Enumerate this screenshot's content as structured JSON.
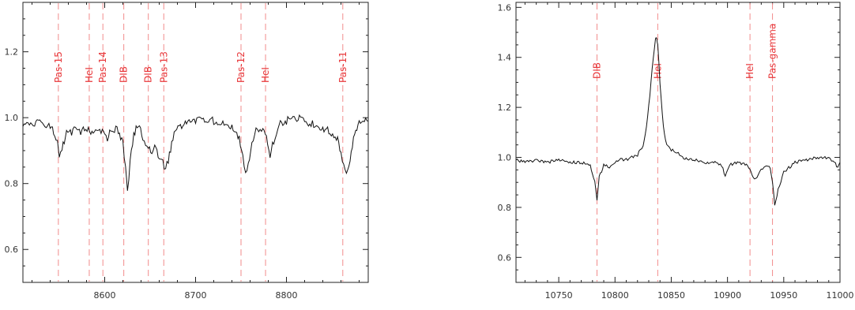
{
  "chart_data": [
    {
      "type": "line",
      "title": "",
      "xlabel": "",
      "ylabel": "",
      "xlim": [
        8510,
        8890
      ],
      "ylim": [
        0.5,
        1.35
      ],
      "xticks": [
        8600,
        8700,
        8800
      ],
      "yticks": [
        0.6,
        0.8,
        1.0,
        1.2
      ],
      "series": [
        {
          "x": [
            8510,
            8520,
            8530,
            8540,
            8545,
            8548,
            8550,
            8553,
            8558,
            8565,
            8575,
            8582,
            8586,
            8590,
            8596,
            8600,
            8603,
            8608,
            8615,
            8620,
            8623,
            8625,
            8628,
            8632,
            8637,
            8642,
            8648,
            8652,
            8655,
            8660,
            8664,
            8667,
            8670,
            8675,
            8682,
            8690,
            8700,
            8710,
            8720,
            8730,
            8740,
            8748,
            8752,
            8755,
            8758,
            8762,
            8768,
            8774,
            8778,
            8782,
            8786,
            8792,
            8800,
            8810,
            8820,
            8830,
            8840,
            8848,
            8855,
            8860,
            8863,
            8866,
            8870,
            8875,
            8880,
            8890
          ],
          "y": [
            0.97,
            0.98,
            0.99,
            0.97,
            0.95,
            0.92,
            0.88,
            0.91,
            0.95,
            0.96,
            0.96,
            0.96,
            0.95,
            0.97,
            0.96,
            0.95,
            0.94,
            0.97,
            0.96,
            0.92,
            0.84,
            0.78,
            0.86,
            0.95,
            0.98,
            0.94,
            0.91,
            0.88,
            0.92,
            0.88,
            0.86,
            0.84,
            0.87,
            0.94,
            0.97,
            0.98,
            0.99,
            0.99,
            0.99,
            0.99,
            0.97,
            0.94,
            0.89,
            0.83,
            0.86,
            0.93,
            0.97,
            0.96,
            0.94,
            0.89,
            0.93,
            0.98,
            0.99,
            1.0,
            0.99,
            0.98,
            0.97,
            0.96,
            0.94,
            0.9,
            0.85,
            0.83,
            0.87,
            0.95,
            0.98,
            0.99
          ]
        }
      ],
      "markers": [
        {
          "label": "Pas-15",
          "x": 8549
        },
        {
          "label": "HeI",
          "x": 8583
        },
        {
          "label": "Pas-14",
          "x": 8598
        },
        {
          "label": "DIB",
          "x": 8621
        },
        {
          "label": "DIB",
          "x": 8648
        },
        {
          "label": "Pas-13",
          "x": 8665
        },
        {
          "label": "Pas-12",
          "x": 8750
        },
        {
          "label": "HeI",
          "x": 8777
        },
        {
          "label": "Pas-11",
          "x": 8862
        }
      ]
    },
    {
      "type": "line",
      "title": "",
      "xlabel": "",
      "ylabel": "",
      "xlim": [
        10712,
        11000
      ],
      "ylim": [
        0.5,
        1.62
      ],
      "xticks": [
        10750,
        10800,
        10850,
        10900,
        10950,
        11000
      ],
      "yticks": [
        0.6,
        0.8,
        1.0,
        1.2,
        1.4,
        1.6
      ],
      "series": [
        {
          "x": [
            10712,
            10720,
            10730,
            10740,
            10750,
            10760,
            10770,
            10778,
            10782,
            10784,
            10786,
            10790,
            10795,
            10800,
            10805,
            10810,
            10815,
            10820,
            10825,
            10828,
            10831,
            10834,
            10836,
            10837,
            10838,
            10840,
            10843,
            10846,
            10850,
            10855,
            10860,
            10870,
            10880,
            10890,
            10896,
            10898,
            10902,
            10910,
            10918,
            10922,
            10925,
            10930,
            10935,
            10938,
            10940,
            10942,
            10945,
            10950,
            10960,
            10970,
            10980,
            10990,
            10995,
            10998,
            11000
          ],
          "y": [
            0.99,
            0.98,
            0.99,
            0.98,
            0.99,
            0.98,
            0.98,
            0.97,
            0.9,
            0.83,
            0.92,
            0.97,
            0.96,
            0.98,
            0.99,
            0.99,
            1.0,
            1.01,
            1.05,
            1.12,
            1.25,
            1.4,
            1.47,
            1.48,
            1.45,
            1.3,
            1.12,
            1.05,
            1.03,
            1.02,
            1.0,
            0.99,
            0.98,
            0.98,
            0.96,
            0.92,
            0.97,
            0.98,
            0.97,
            0.93,
            0.91,
            0.95,
            0.97,
            0.96,
            0.9,
            0.81,
            0.87,
            0.94,
            0.98,
            0.99,
            1.0,
            1.0,
            0.98,
            0.96,
            0.98
          ]
        }
      ],
      "markers": [
        {
          "label": "DIB",
          "x": 10784
        },
        {
          "label": "HeI",
          "x": 10838
        },
        {
          "label": "HeI",
          "x": 10920
        },
        {
          "label": "Pas-gamma",
          "x": 10940
        }
      ]
    }
  ]
}
